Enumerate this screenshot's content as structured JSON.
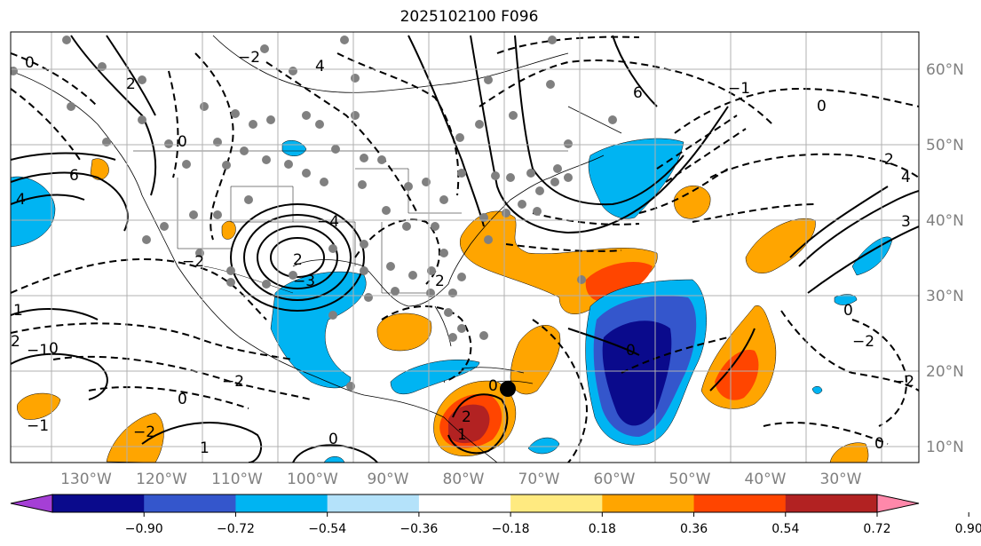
{
  "title": "2025102100 F096",
  "lat_labels": [
    "10°N",
    "20°N",
    "30°N",
    "40°N",
    "50°N",
    "60°N"
  ],
  "lon_labels": [
    "130°W",
    "120°W",
    "110°W",
    "100°W",
    "90°W",
    "80°W",
    "70°W",
    "60°W",
    "50°W",
    "40°W",
    "30°W"
  ],
  "colorbar": {
    "colors": [
      "#a53fd6",
      "#0a0a8c",
      "#3456cc",
      "#00b4f2",
      "#b4e2fa",
      "#ffffff",
      "#ffea80",
      "#ffa500",
      "#ff4500",
      "#b22222",
      "#ff88aa"
    ],
    "ticks": [
      "−0.90",
      "−0.72",
      "−0.54",
      "−0.36",
      "−0.18",
      "0.18",
      "0.36",
      "0.54",
      "0.72",
      "0.90"
    ]
  },
  "contour_labels": [
    "6",
    "4",
    "2",
    "0",
    "−1",
    "1",
    "−2",
    "2",
    "4",
    "6",
    "−4",
    "2",
    "−2",
    "0",
    "−3",
    "2",
    "4",
    "3",
    "−2",
    "0",
    "−2",
    "0",
    "0",
    "1",
    "0",
    "−1",
    "2",
    "0",
    "−2",
    "1",
    "2",
    "−1",
    "−2",
    "0",
    "0",
    "0"
  ],
  "marker": "tropical cyclone position"
}
